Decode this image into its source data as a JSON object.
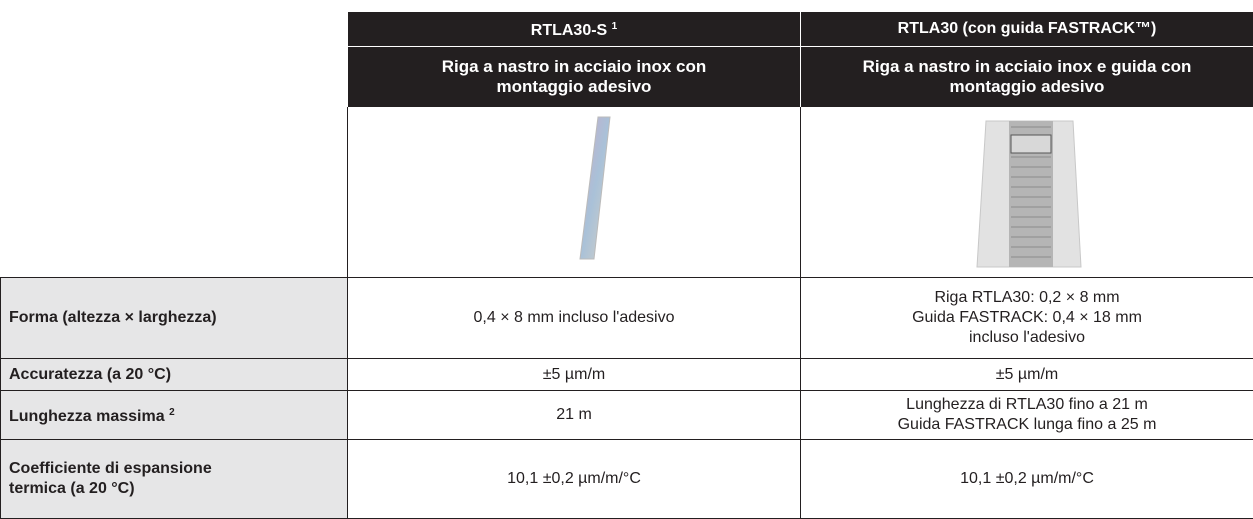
{
  "table": {
    "headers": [
      {
        "title": "RTLA30-S",
        "sup": "1"
      },
      {
        "title": "RTLA30 (con guida FASTRACK™)"
      }
    ],
    "subtitles": [
      [
        "Riga a nastro in acciaio inox con",
        "montaggio adesivo"
      ],
      [
        "Riga a nastro in acciaio inox e guida con",
        "montaggio adesivo"
      ]
    ],
    "rows": [
      {
        "label": [
          "Forma (altezza × larghezza)"
        ],
        "cells": [
          [
            "0,4 × 8 mm incluso l'adesivo"
          ],
          [
            "Riga RTLA30: 0,2 × 8 mm",
            "Guida FASTRACK: 0,4 × 18 mm",
            "incluso l'adesivo"
          ]
        ]
      },
      {
        "label": [
          "Accuratezza (a 20 °C)"
        ],
        "cells": [
          [
            "±5 µm/m"
          ],
          [
            "±5 µm/m"
          ]
        ]
      },
      {
        "label": [
          "Lunghezza massima"
        ],
        "sup": "2",
        "cells": [
          [
            "21 m"
          ],
          [
            "Lunghezza di RTLA30 fino a 21 m",
            "Guida FASTRACK lunga fino a 25 m"
          ]
        ]
      },
      {
        "label": [
          "Coefficiente di espansione",
          "termica (a 20 °C)"
        ],
        "cells": [
          [
            "10,1 ±0,2 µm/m/°C"
          ],
          [
            "10,1 ±0,2 µm/m/°C"
          ]
        ]
      }
    ]
  }
}
